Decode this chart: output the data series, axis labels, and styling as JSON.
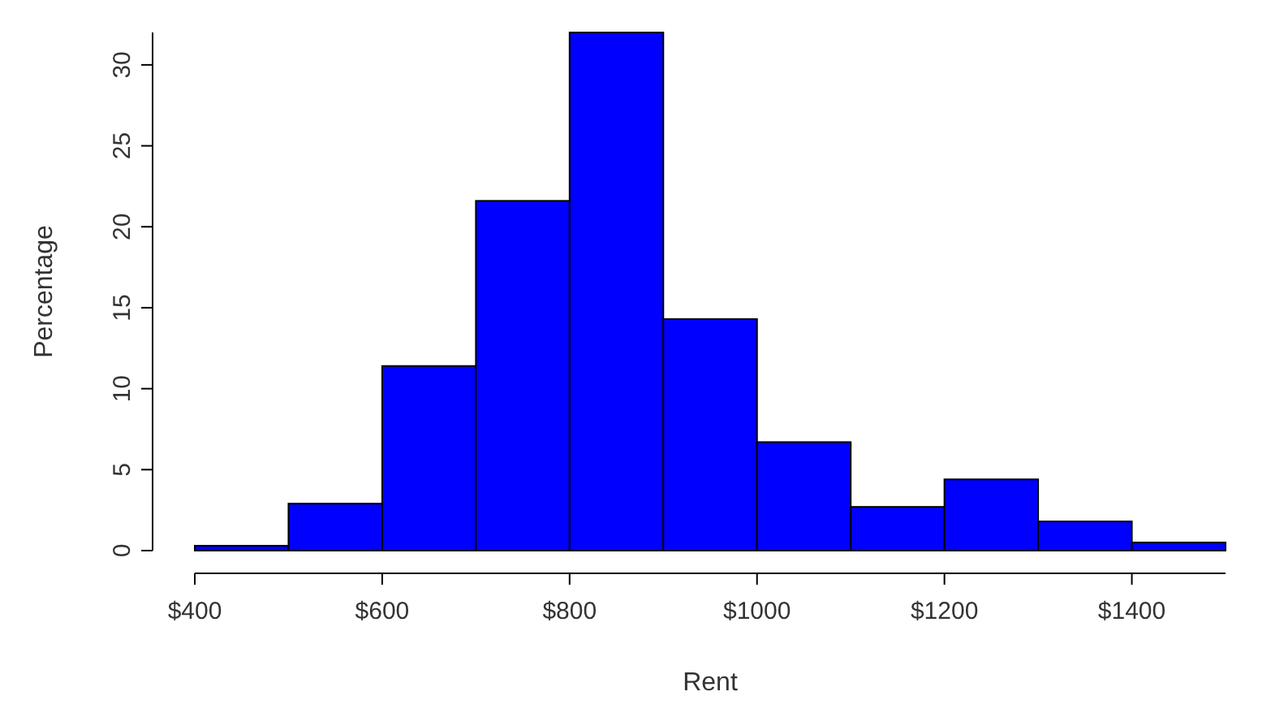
{
  "chart_data": {
    "type": "histogram",
    "xlabel": "Rent",
    "ylabel": "Percentage",
    "bins": [
      400,
      500,
      600,
      700,
      800,
      900,
      1000,
      1100,
      1200,
      1300,
      1400,
      1500
    ],
    "values": [
      0.3,
      2.9,
      11.4,
      21.6,
      32,
      14.3,
      6.7,
      2.7,
      4.4,
      1.8,
      0.5
    ],
    "color": "#0000ff",
    "xlim": [
      400,
      1500
    ],
    "xticks": [
      {
        "value": 400,
        "label": "$400"
      },
      {
        "value": 600,
        "label": "$600"
      },
      {
        "value": 800,
        "label": "$800"
      },
      {
        "value": 1000,
        "label": "$1000"
      },
      {
        "value": 1200,
        "label": "$1200"
      },
      {
        "value": 1400,
        "label": "$1400"
      }
    ],
    "ylim": [
      0,
      32
    ],
    "yticks": [
      0,
      5,
      10,
      15,
      20,
      25,
      30
    ],
    "grid": false
  }
}
